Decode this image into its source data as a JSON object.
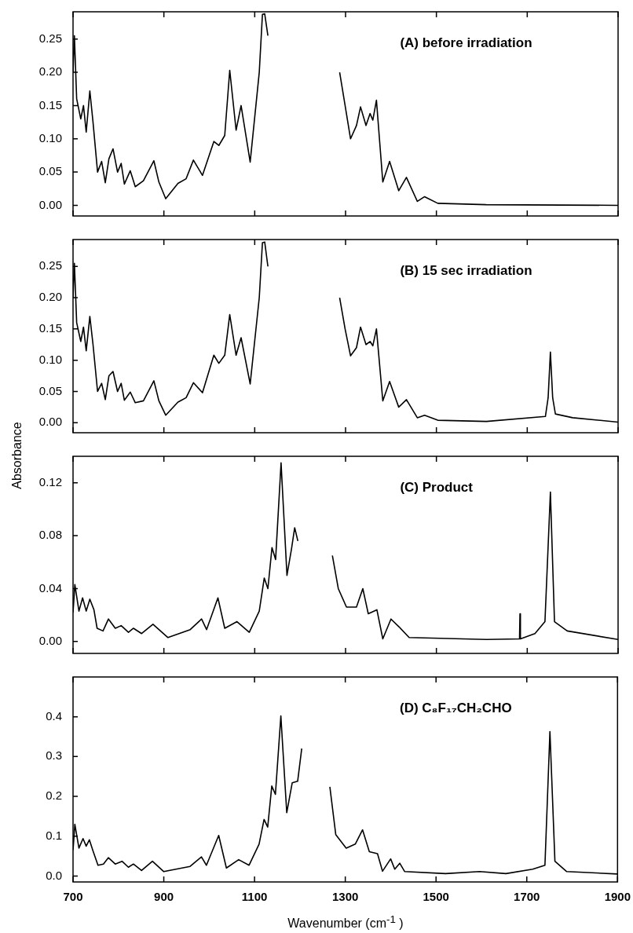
{
  "chart_data": [
    {
      "type": "line",
      "title": "(A) before irradiation",
      "tick_labels": "y",
      "marker": "none",
      "color": "#000000",
      "xlim": [
        700,
        1900
      ],
      "xticks": [
        700,
        900,
        1100,
        1300,
        1500,
        1700,
        1900
      ],
      "ylim": [
        -0.016,
        0.291
      ],
      "yticks": [
        {
          "value": 0,
          "label": "0.00"
        },
        {
          "value": 0.05,
          "label": "0.05"
        },
        {
          "value": 0.1,
          "label": "0.10"
        },
        {
          "value": 0.15,
          "label": "0.15"
        },
        {
          "value": 0.2,
          "label": "0.20"
        },
        {
          "value": 0.25,
          "label": "0.25"
        }
      ],
      "x": [
        700,
        703,
        708,
        717,
        723,
        729,
        737,
        744,
        754,
        763,
        771,
        779,
        788,
        798,
        806,
        813,
        826,
        837,
        855,
        878,
        889,
        904,
        931,
        949,
        965,
        985,
        1010,
        1021,
        1034,
        1045,
        1059,
        1070,
        1090,
        1110,
        1117,
        1122,
        1129,
        1133,
        1200,
        1276,
        1287,
        1299,
        1311,
        1324,
        1333,
        1345,
        1354,
        1360,
        1368,
        1382,
        1397,
        1417,
        1434,
        1458,
        1474,
        1503,
        1610,
        1900
      ],
      "values": [
        0.2,
        0.255,
        0.16,
        0.13,
        0.15,
        0.11,
        0.172,
        0.125,
        0.05,
        0.066,
        0.034,
        0.07,
        0.085,
        0.05,
        0.063,
        0.032,
        0.052,
        0.028,
        0.037,
        0.067,
        0.035,
        0.01,
        0.033,
        0.04,
        0.068,
        0.045,
        0.096,
        0.09,
        0.105,
        0.203,
        0.113,
        0.15,
        0.065,
        0.2,
        0.287,
        0.288,
        0.255,
        null,
        null,
        null,
        0.2,
        0.15,
        0.1,
        0.12,
        0.148,
        0.12,
        0.138,
        0.128,
        0.158,
        0.035,
        0.066,
        0.022,
        0.042,
        0.006,
        0.013,
        0.003,
        0.001,
        0
      ]
    },
    {
      "type": "line",
      "title": "(B) 15 sec irradiation",
      "ylabel": "Absorbance",
      "tick_labels": "y",
      "marker": "none",
      "color": "#000000",
      "xlim": [
        700,
        1900
      ],
      "xticks": [
        700,
        900,
        1100,
        1300,
        1500,
        1700,
        1900
      ],
      "ylim": [
        -0.016,
        0.293
      ],
      "yticks": [
        {
          "value": 0,
          "label": "0.00"
        },
        {
          "value": 0.05,
          "label": "0.05"
        },
        {
          "value": 0.1,
          "label": "0.10"
        },
        {
          "value": 0.15,
          "label": "0.15"
        },
        {
          "value": 0.2,
          "label": "0.20"
        },
        {
          "value": 0.25,
          "label": "0.25"
        }
      ],
      "x": [
        700,
        703,
        708,
        717,
        723,
        729,
        737,
        744,
        754,
        763,
        771,
        779,
        788,
        798,
        806,
        813,
        826,
        837,
        855,
        878,
        889,
        904,
        931,
        949,
        965,
        985,
        1010,
        1021,
        1034,
        1045,
        1059,
        1070,
        1090,
        1110,
        1117,
        1122,
        1129,
        1133,
        1200,
        1276,
        1287,
        1299,
        1311,
        1324,
        1333,
        1345,
        1354,
        1360,
        1368,
        1382,
        1397,
        1417,
        1434,
        1458,
        1474,
        1503,
        1610,
        1740,
        1746,
        1751,
        1756,
        1762,
        1800,
        1900
      ],
      "values": [
        0.2,
        0.255,
        0.16,
        0.13,
        0.153,
        0.115,
        0.17,
        0.125,
        0.05,
        0.063,
        0.037,
        0.075,
        0.082,
        0.05,
        0.063,
        0.036,
        0.049,
        0.032,
        0.035,
        0.067,
        0.035,
        0.012,
        0.033,
        0.04,
        0.064,
        0.048,
        0.108,
        0.095,
        0.108,
        0.173,
        0.108,
        0.136,
        0.062,
        0.2,
        0.288,
        0.289,
        0.25,
        null,
        null,
        null,
        0.2,
        0.15,
        0.107,
        0.12,
        0.153,
        0.125,
        0.13,
        0.123,
        0.15,
        0.035,
        0.066,
        0.025,
        0.037,
        0.008,
        0.012,
        0.004,
        0.002,
        0.01,
        0.04,
        0.113,
        0.04,
        0.014,
        0.008,
        0.001
      ]
    },
    {
      "type": "line",
      "title": "(C) Product",
      "tick_labels": "y",
      "marker": "none",
      "color": "#000000",
      "xlim": [
        700,
        1900
      ],
      "xticks": [
        700,
        900,
        1100,
        1300,
        1500,
        1700,
        1900
      ],
      "ylim": [
        -0.009,
        0.14
      ],
      "yticks": [
        {
          "value": 0,
          "label": "0.00"
        },
        {
          "value": 0.04,
          "label": "0.04"
        },
        {
          "value": 0.08,
          "label": "0.08"
        },
        {
          "value": 0.12,
          "label": "0.12"
        }
      ],
      "x": [
        700,
        704,
        713,
        721,
        729,
        737,
        746,
        753,
        766,
        778,
        793,
        806,
        822,
        833,
        851,
        876,
        909,
        958,
        983,
        994,
        1019,
        1034,
        1061,
        1088,
        1110,
        1121,
        1129,
        1138,
        1146,
        1158,
        1171,
        1181,
        1188,
        1195,
        1206,
        1235,
        1263,
        1271,
        1284,
        1302,
        1324,
        1338,
        1350,
        1369,
        1382,
        1400,
        1418,
        1440,
        1610,
        1683,
        1684,
        1685,
        1717,
        1739,
        1751,
        1760,
        1788,
        1900
      ],
      "values": [
        0.022,
        0.043,
        0.023,
        0.033,
        0.023,
        0.032,
        0.024,
        0.01,
        0.008,
        0.017,
        0.01,
        0.012,
        0.007,
        0.01,
        0.006,
        0.013,
        0.003,
        0.009,
        0.017,
        0.009,
        0.033,
        0.01,
        0.015,
        0.007,
        0.023,
        0.048,
        0.04,
        0.071,
        0.062,
        0.135,
        0.05,
        0.07,
        0.086,
        0.076,
        null,
        null,
        null,
        0.065,
        0.04,
        0.026,
        0.026,
        0.04,
        0.021,
        0.024,
        0.002,
        0.017,
        0.011,
        0.003,
        0.0015,
        0.002,
        0.021,
        0.002,
        0.006,
        0.015,
        0.113,
        0.015,
        0.008,
        0.0015
      ]
    },
    {
      "type": "line",
      "title": "(D) C₈F₁₇CH₂CHO",
      "xlabel": "Wavenumber (cm$^{-1}$ )",
      "marker": "none",
      "color": "#000000",
      "xlim": [
        700,
        1900
      ],
      "xticks": [
        700,
        900,
        1100,
        1300,
        1500,
        1700,
        1900
      ],
      "ylim": [
        -0.015,
        0.5
      ],
      "yticks": [
        {
          "value": 0,
          "label": "0.0"
        },
        {
          "value": 0.1,
          "label": "0.1"
        },
        {
          "value": 0.2,
          "label": "0.2"
        },
        {
          "value": 0.3,
          "label": "0.3"
        },
        {
          "value": 0.4,
          "label": "0.4"
        }
      ],
      "x": [
        700,
        704,
        713,
        722,
        729,
        736,
        744,
        755,
        767,
        778,
        793,
        808,
        822,
        833,
        851,
        875,
        900,
        958,
        983,
        994,
        1021,
        1038,
        1065,
        1088,
        1110,
        1121,
        1129,
        1138,
        1146,
        1158,
        1171,
        1183,
        1195,
        1204,
        1210,
        1235,
        1262,
        1266,
        1279,
        1302,
        1322,
        1338,
        1353,
        1371,
        1382,
        1400,
        1409,
        1420,
        1431,
        1521,
        1596,
        1654,
        1713,
        1740,
        1751,
        1762,
        1788,
        1900
      ],
      "values": [
        0.065,
        0.13,
        0.07,
        0.094,
        0.075,
        0.091,
        0.063,
        0.027,
        0.03,
        0.046,
        0.03,
        0.037,
        0.022,
        0.03,
        0.014,
        0.037,
        0.011,
        0.024,
        0.048,
        0.027,
        0.102,
        0.02,
        0.041,
        0.027,
        0.08,
        0.142,
        0.123,
        0.226,
        0.205,
        0.402,
        0.159,
        0.234,
        0.238,
        0.32,
        null,
        null,
        null,
        0.224,
        0.104,
        0.07,
        0.08,
        0.116,
        0.061,
        0.056,
        0.012,
        0.043,
        0.017,
        0.032,
        0.011,
        0.006,
        0.011,
        0.006,
        0.017,
        0.027,
        0.363,
        0.037,
        0.011,
        0.005
      ]
    }
  ]
}
